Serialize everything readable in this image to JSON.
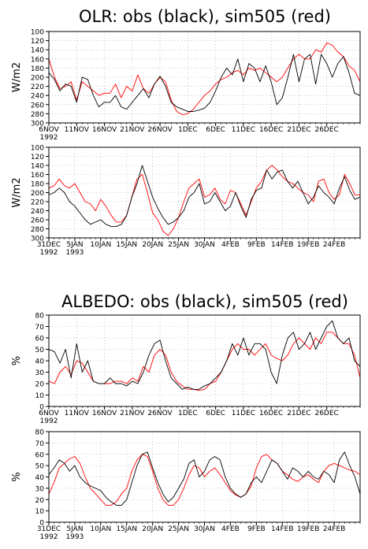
{
  "titles": {
    "olr": "OLR: obs (black), sim505 (red)",
    "albedo": "ALBEDO: obs (black), sim505 (red)"
  },
  "colors": {
    "obs": "#000000",
    "sim": "#ff0000",
    "grid": "#9a9a9a"
  },
  "chart_data": [
    {
      "type": "line",
      "ylabel": "W/m2",
      "ylim": [
        300,
        100
      ],
      "inverted_y": true,
      "yticks": [
        "100",
        "120",
        "140",
        "160",
        "180",
        "200",
        "220",
        "240",
        "260",
        "280",
        "300"
      ],
      "xticks": [
        "6NOV",
        "11NOV",
        "16NOV",
        "21NOV",
        "26NOV",
        "1DEC",
        "6DEC",
        "11DEC",
        "16DEC",
        "21DEC",
        "26DEC"
      ],
      "xticks_sub": [
        "1992"
      ],
      "x_day_range": [
        0,
        56
      ],
      "series": [
        {
          "name": "obs",
          "color": "#000000",
          "x": [
            0,
            1,
            2,
            3,
            4,
            5,
            6,
            7,
            8,
            9,
            10,
            11,
            12,
            13,
            14,
            15,
            16,
            17,
            18,
            19,
            20,
            21,
            22,
            23,
            24,
            25,
            26,
            27,
            28,
            29,
            30,
            31,
            32,
            33,
            34,
            35,
            36,
            37,
            38,
            39,
            40,
            41,
            42,
            43,
            44,
            45,
            46,
            47,
            48,
            49,
            50,
            51,
            52,
            53,
            54,
            55,
            56
          ],
          "values": [
            190,
            205,
            230,
            215,
            220,
            255,
            200,
            205,
            240,
            265,
            255,
            255,
            240,
            265,
            270,
            255,
            240,
            225,
            245,
            215,
            198,
            220,
            255,
            265,
            270,
            275,
            275,
            272,
            268,
            255,
            230,
            200,
            180,
            195,
            160,
            210,
            170,
            180,
            210,
            175,
            210,
            260,
            245,
            200,
            150,
            210,
            160,
            150,
            215,
            150,
            170,
            200,
            170,
            155,
            190,
            235,
            240
          ]
        },
        {
          "name": "sim505",
          "color": "#ff0000",
          "x": [
            0,
            1,
            2,
            3,
            4,
            5,
            6,
            7,
            8,
            9,
            10,
            11,
            12,
            13,
            14,
            15,
            16,
            17,
            18,
            19,
            20,
            21,
            22,
            23,
            24,
            25,
            26,
            27,
            28,
            29,
            30,
            31,
            32,
            33,
            34,
            35,
            36,
            37,
            38,
            39,
            40,
            41,
            42,
            43,
            44,
            45,
            46,
            47,
            48,
            49,
            50,
            51,
            52,
            53,
            54,
            55,
            56
          ],
          "values": [
            160,
            200,
            225,
            220,
            210,
            250,
            210,
            220,
            230,
            240,
            235,
            235,
            215,
            245,
            220,
            230,
            195,
            225,
            235,
            215,
            200,
            210,
            250,
            275,
            282,
            280,
            270,
            255,
            240,
            230,
            215,
            205,
            200,
            190,
            185,
            195,
            180,
            185,
            180,
            190,
            200,
            210,
            200,
            180,
            160,
            150,
            160,
            160,
            140,
            145,
            125,
            130,
            145,
            155,
            175,
            185,
            210
          ]
        }
      ]
    },
    {
      "type": "line",
      "ylabel": "W/m2",
      "ylim": [
        300,
        100
      ],
      "inverted_y": true,
      "yticks": [
        "100",
        "120",
        "140",
        "160",
        "180",
        "200",
        "220",
        "240",
        "260",
        "280",
        "300"
      ],
      "xticks": [
        "31DEC",
        "5JAN",
        "10JAN",
        "15JAN",
        "20JAN",
        "25JAN",
        "30JAN",
        "4FEB",
        "9FEB",
        "14FEB",
        "19FEB",
        "24FEB"
      ],
      "xticks_sub": [
        "1992",
        "1993"
      ],
      "x_day_range": [
        0,
        60
      ],
      "series": [
        {
          "name": "obs",
          "color": "#000000",
          "x": [
            0,
            1,
            2,
            3,
            4,
            5,
            6,
            7,
            8,
            9,
            10,
            11,
            12,
            13,
            14,
            15,
            16,
            17,
            18,
            19,
            20,
            21,
            22,
            23,
            24,
            25,
            26,
            27,
            28,
            29,
            30,
            31,
            32,
            33,
            34,
            35,
            36,
            37,
            38,
            39,
            40,
            41,
            42,
            43,
            44,
            45,
            46,
            47,
            48,
            49,
            50,
            51,
            52,
            53,
            54,
            55,
            56,
            57,
            58,
            59,
            60
          ],
          "values": [
            205,
            200,
            190,
            200,
            220,
            230,
            245,
            260,
            270,
            265,
            260,
            270,
            275,
            275,
            270,
            250,
            210,
            180,
            140,
            175,
            210,
            235,
            255,
            270,
            265,
            255,
            240,
            210,
            200,
            180,
            225,
            220,
            200,
            220,
            240,
            230,
            200,
            230,
            255,
            215,
            195,
            190,
            150,
            170,
            155,
            150,
            175,
            190,
            175,
            200,
            225,
            210,
            185,
            200,
            210,
            225,
            190,
            165,
            195,
            215,
            210
          ]
        },
        {
          "name": "sim505",
          "color": "#ff0000",
          "x": [
            0,
            1,
            2,
            3,
            4,
            5,
            6,
            7,
            8,
            9,
            10,
            11,
            12,
            13,
            14,
            15,
            16,
            17,
            18,
            19,
            20,
            21,
            22,
            23,
            24,
            25,
            26,
            27,
            28,
            29,
            30,
            31,
            32,
            33,
            34,
            35,
            36,
            37,
            38,
            39,
            40,
            41,
            42,
            43,
            44,
            45,
            46,
            47,
            48,
            49,
            50,
            51,
            52,
            53,
            54,
            55,
            56,
            57,
            58,
            59,
            60
          ],
          "values": [
            190,
            185,
            170,
            185,
            190,
            180,
            200,
            220,
            225,
            240,
            215,
            230,
            250,
            265,
            265,
            250,
            210,
            170,
            160,
            200,
            245,
            260,
            285,
            295,
            280,
            255,
            220,
            190,
            180,
            170,
            210,
            205,
            190,
            215,
            225,
            195,
            200,
            225,
            250,
            220,
            190,
            175,
            150,
            140,
            150,
            165,
            175,
            180,
            190,
            200,
            205,
            220,
            175,
            170,
            200,
            215,
            205,
            160,
            180,
            205,
            205
          ]
        }
      ]
    },
    {
      "type": "line",
      "ylabel": "%",
      "ylim": [
        0,
        80
      ],
      "yticks": [
        "0",
        "10",
        "20",
        "30",
        "40",
        "50",
        "60",
        "70",
        "80"
      ],
      "xticks": [
        "6NOV",
        "11NOV",
        "16NOV",
        "21NOV",
        "26NOV",
        "1DEC",
        "6DEC",
        "11DEC",
        "16DEC",
        "21DEC",
        "26DEC"
      ],
      "xticks_sub": [
        "1992"
      ],
      "x_day_range": [
        0,
        56
      ],
      "series": [
        {
          "name": "obs",
          "color": "#000000",
          "x": [
            0,
            1,
            2,
            3,
            4,
            5,
            6,
            7,
            8,
            9,
            10,
            11,
            12,
            13,
            14,
            15,
            16,
            17,
            18,
            19,
            20,
            21,
            22,
            23,
            24,
            25,
            26,
            27,
            28,
            29,
            30,
            31,
            32,
            33,
            34,
            35,
            36,
            37,
            38,
            39,
            40,
            41,
            42,
            43,
            44,
            45,
            46,
            47,
            48,
            49,
            50,
            51,
            52,
            53,
            54,
            55,
            56
          ],
          "values": [
            50,
            48,
            38,
            50,
            25,
            55,
            30,
            40,
            22,
            20,
            20,
            25,
            20,
            20,
            18,
            22,
            20,
            30,
            45,
            55,
            58,
            40,
            25,
            20,
            15,
            17,
            15,
            15,
            18,
            20,
            25,
            30,
            40,
            55,
            45,
            60,
            45,
            55,
            55,
            50,
            30,
            20,
            45,
            60,
            65,
            50,
            55,
            65,
            50,
            60,
            70,
            75,
            60,
            55,
            60,
            40,
            35
          ]
        },
        {
          "name": "sim505",
          "color": "#ff0000",
          "x": [
            0,
            1,
            2,
            3,
            4,
            5,
            6,
            7,
            8,
            9,
            10,
            11,
            12,
            13,
            14,
            15,
            16,
            17,
            18,
            19,
            20,
            21,
            22,
            23,
            24,
            25,
            26,
            27,
            28,
            29,
            30,
            31,
            32,
            33,
            34,
            35,
            36,
            37,
            38,
            39,
            40,
            41,
            42,
            43,
            44,
            45,
            46,
            47,
            48,
            49,
            50,
            51,
            52,
            53,
            54,
            55,
            56
          ],
          "values": [
            22,
            20,
            30,
            35,
            28,
            40,
            38,
            30,
            22,
            20,
            20,
            20,
            22,
            22,
            20,
            25,
            22,
            35,
            30,
            45,
            50,
            45,
            30,
            22,
            18,
            15,
            15,
            14,
            15,
            20,
            22,
            30,
            40,
            50,
            55,
            50,
            50,
            45,
            50,
            55,
            45,
            42,
            40,
            45,
            55,
            60,
            55,
            50,
            60,
            55,
            65,
            65,
            60,
            55,
            55,
            45,
            25
          ]
        }
      ]
    },
    {
      "type": "line",
      "ylabel": "%",
      "ylim": [
        0,
        80
      ],
      "yticks": [
        "0",
        "10",
        "20",
        "30",
        "40",
        "50",
        "60",
        "70",
        "80"
      ],
      "xticks": [
        "31DEC",
        "5JAN",
        "10JAN",
        "15JAN",
        "20JAN",
        "25JAN",
        "30JAN",
        "4FEB",
        "9FEB",
        "14FEB",
        "19FEB",
        "24FEB"
      ],
      "xticks_sub": [
        "1992",
        "1993"
      ],
      "x_day_range": [
        0,
        60
      ],
      "series": [
        {
          "name": "obs",
          "color": "#000000",
          "x": [
            0,
            1,
            2,
            3,
            4,
            5,
            6,
            7,
            8,
            9,
            10,
            11,
            12,
            13,
            14,
            15,
            16,
            17,
            18,
            19,
            20,
            21,
            22,
            23,
            24,
            25,
            26,
            27,
            28,
            29,
            30,
            31,
            32,
            33,
            34,
            35,
            36,
            37,
            38,
            39,
            40,
            41,
            42,
            43,
            44,
            45,
            46,
            47,
            48,
            49,
            50,
            51,
            52,
            53,
            54,
            55,
            56,
            57,
            58,
            59,
            60
          ],
          "values": [
            42,
            48,
            55,
            52,
            45,
            50,
            40,
            35,
            32,
            30,
            28,
            22,
            18,
            15,
            15,
            20,
            35,
            50,
            60,
            62,
            48,
            35,
            25,
            18,
            22,
            30,
            38,
            52,
            55,
            40,
            45,
            55,
            58,
            55,
            40,
            30,
            25,
            22,
            25,
            35,
            40,
            35,
            45,
            55,
            52,
            45,
            38,
            48,
            45,
            40,
            45,
            40,
            38,
            45,
            42,
            35,
            55,
            62,
            50,
            40,
            25
          ]
        },
        {
          "name": "sim505",
          "color": "#ff0000",
          "x": [
            0,
            1,
            2,
            3,
            4,
            5,
            6,
            7,
            8,
            9,
            10,
            11,
            12,
            13,
            14,
            15,
            16,
            17,
            18,
            19,
            20,
            21,
            22,
            23,
            24,
            25,
            26,
            27,
            28,
            29,
            30,
            31,
            32,
            33,
            34,
            35,
            36,
            37,
            38,
            39,
            40,
            41,
            42,
            43,
            44,
            45,
            46,
            47,
            48,
            49,
            50,
            51,
            52,
            53,
            54,
            55,
            56,
            57,
            58,
            59,
            60
          ],
          "values": [
            25,
            35,
            48,
            52,
            56,
            58,
            52,
            40,
            30,
            25,
            20,
            15,
            15,
            18,
            25,
            30,
            45,
            55,
            60,
            58,
            45,
            30,
            20,
            15,
            15,
            20,
            30,
            42,
            50,
            48,
            40,
            45,
            48,
            42,
            35,
            28,
            24,
            22,
            25,
            32,
            48,
            58,
            60,
            55,
            52,
            45,
            42,
            38,
            36,
            40,
            42,
            38,
            35,
            45,
            50,
            52,
            50,
            48,
            46,
            45,
            42
          ]
        }
      ]
    }
  ]
}
